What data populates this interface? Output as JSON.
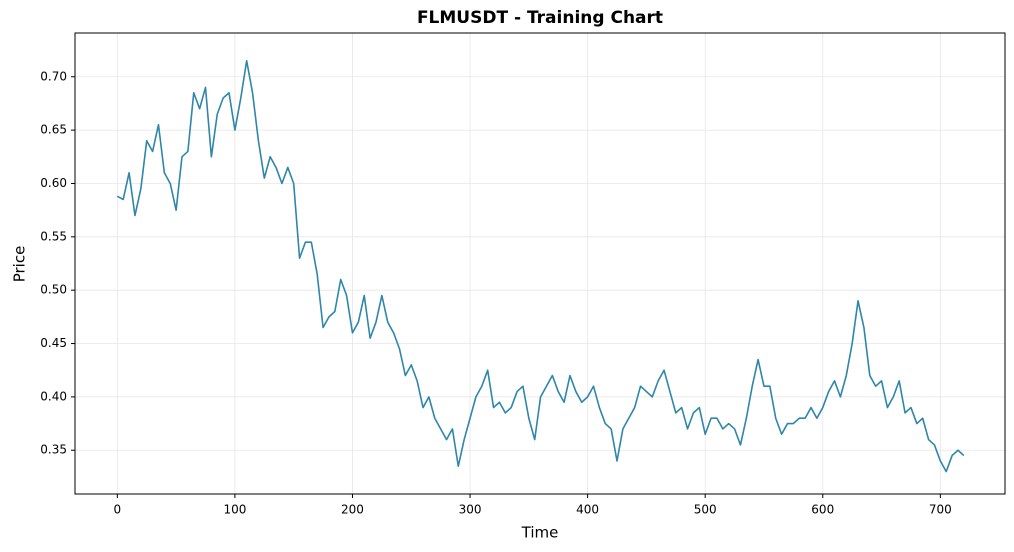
{
  "chart_data": {
    "type": "line",
    "title": "FLMUSDT - Training Chart",
    "x_label": "Time",
    "y_label": "Price",
    "x": [
      0,
      5,
      10,
      15,
      20,
      25,
      30,
      35,
      40,
      45,
      50,
      55,
      60,
      65,
      70,
      75,
      80,
      85,
      90,
      95,
      100,
      105,
      110,
      115,
      120,
      125,
      130,
      135,
      140,
      145,
      150,
      155,
      160,
      165,
      170,
      175,
      180,
      185,
      190,
      195,
      200,
      205,
      210,
      215,
      220,
      225,
      230,
      235,
      240,
      245,
      250,
      255,
      260,
      265,
      270,
      275,
      280,
      285,
      290,
      295,
      300,
      305,
      310,
      315,
      320,
      325,
      330,
      335,
      340,
      345,
      350,
      355,
      360,
      365,
      370,
      375,
      380,
      385,
      390,
      395,
      400,
      405,
      410,
      415,
      420,
      425,
      430,
      435,
      440,
      445,
      450,
      455,
      460,
      465,
      470,
      475,
      480,
      485,
      490,
      495,
      500,
      505,
      510,
      515,
      520,
      525,
      530,
      535,
      540,
      545,
      550,
      555,
      560,
      565,
      570,
      575,
      580,
      585,
      590,
      595,
      600,
      605,
      610,
      615,
      620,
      625,
      630,
      635,
      640,
      645,
      650,
      655,
      660,
      665,
      670,
      675,
      680,
      685,
      690,
      695,
      700,
      705,
      710,
      715,
      720
    ],
    "series": [
      {
        "color": "#2e86ab",
        "values": [
          0.588,
          0.585,
          0.61,
          0.57,
          0.595,
          0.64,
          0.63,
          0.655,
          0.61,
          0.6,
          0.575,
          0.625,
          0.63,
          0.685,
          0.67,
          0.69,
          0.625,
          0.665,
          0.68,
          0.685,
          0.65,
          0.68,
          0.715,
          0.685,
          0.64,
          0.605,
          0.625,
          0.615,
          0.6,
          0.615,
          0.6,
          0.53,
          0.545,
          0.545,
          0.515,
          0.465,
          0.475,
          0.48,
          0.51,
          0.495,
          0.46,
          0.47,
          0.495,
          0.455,
          0.47,
          0.495,
          0.47,
          0.46,
          0.445,
          0.42,
          0.43,
          0.415,
          0.39,
          0.4,
          0.38,
          0.37,
          0.36,
          0.37,
          0.335,
          0.36,
          0.38,
          0.4,
          0.41,
          0.425,
          0.39,
          0.395,
          0.385,
          0.39,
          0.405,
          0.41,
          0.38,
          0.36,
          0.4,
          0.41,
          0.42,
          0.405,
          0.395,
          0.42,
          0.405,
          0.395,
          0.4,
          0.41,
          0.39,
          0.375,
          0.37,
          0.34,
          0.37,
          0.38,
          0.39,
          0.41,
          0.405,
          0.4,
          0.415,
          0.425,
          0.405,
          0.385,
          0.39,
          0.37,
          0.385,
          0.39,
          0.365,
          0.38,
          0.38,
          0.37,
          0.375,
          0.37,
          0.355,
          0.38,
          0.41,
          0.435,
          0.41,
          0.41,
          0.38,
          0.365,
          0.375,
          0.375,
          0.38,
          0.38,
          0.39,
          0.38,
          0.39,
          0.405,
          0.415,
          0.4,
          0.42,
          0.45,
          0.49,
          0.465,
          0.42,
          0.41,
          0.415,
          0.39,
          0.4,
          0.415,
          0.385,
          0.39,
          0.375,
          0.38,
          0.36,
          0.355,
          0.34,
          0.33,
          0.345,
          0.35,
          0.345
        ]
      }
    ],
    "xlim": [
      -36,
      755
    ],
    "ylim": [
      0.309,
      0.741
    ],
    "xticks": [
      0,
      100,
      200,
      300,
      400,
      500,
      600,
      700
    ],
    "yticks": [
      0.35,
      {
        "value": 0.4,
        "label": "0.40"
      },
      0.45,
      {
        "value": 0.5,
        "label": "0.50"
      },
      0.55,
      {
        "value": 0.6,
        "label": "0.60"
      },
      0.65,
      {
        "value": 0.7,
        "label": "0.70"
      }
    ],
    "grid": true
  }
}
